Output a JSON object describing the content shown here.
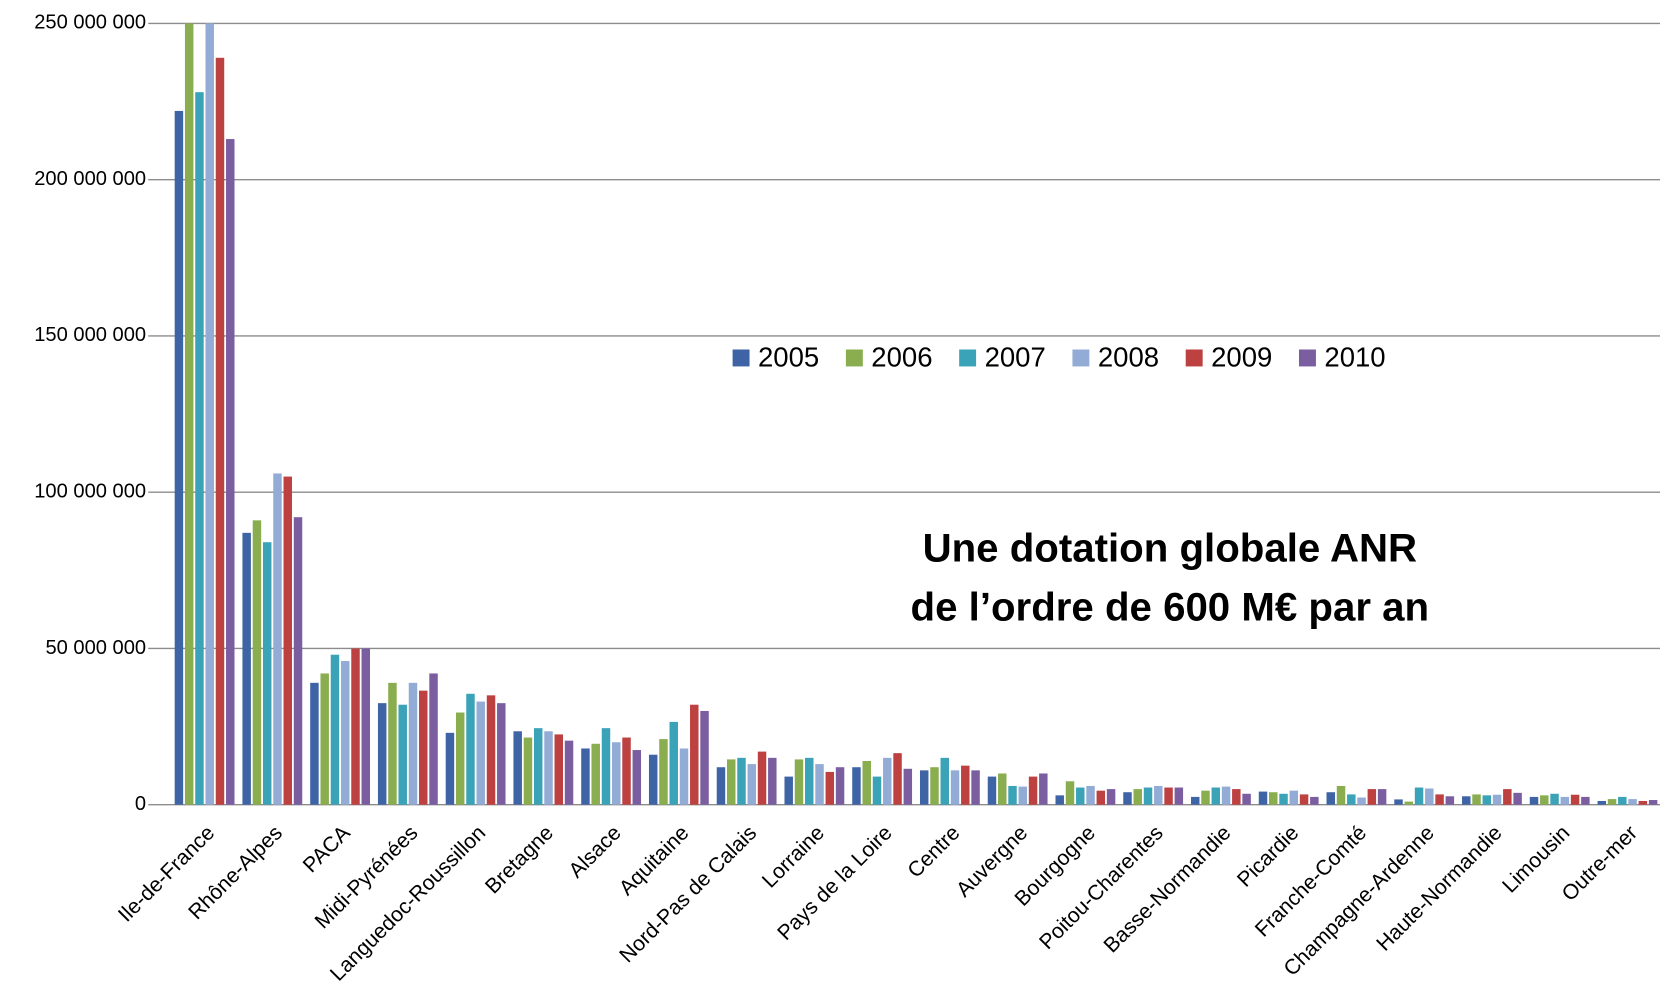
{
  "chart_data": {
    "type": "bar",
    "categories": [
      "Ile-de-France",
      "Rhône-Alpes",
      "PACA",
      "Midi-Pyrénées",
      "Languedoc-Roussillon",
      "Bretagne",
      "Alsace",
      "Aquitaine",
      "Nord-Pas de Calais",
      "Lorraine",
      "Pays de la Loire",
      "Centre",
      "Auvergne",
      "Bourgogne",
      "Poitou-Charentes",
      "Basse-Normandie",
      "Picardie",
      "Franche-Comté",
      "Champagne-Ardenne",
      "Haute-Normandie",
      "Limousin",
      "Outre-mer"
    ],
    "series": [
      {
        "name": "2005",
        "color": "#3f64a6",
        "values": [
          222000000,
          87000000,
          39000000,
          32500000,
          23000000,
          23500000,
          18000000,
          16000000,
          12000000,
          9000000,
          12000000,
          11000000,
          9000000,
          3000000,
          4000000,
          2500000,
          4200000,
          4000000,
          1700000,
          2700000,
          2500000,
          1200000
        ]
      },
      {
        "name": "2006",
        "color": "#8aad4f",
        "values": [
          255000000,
          91000000,
          42000000,
          39000000,
          29500000,
          21500000,
          19500000,
          21000000,
          14500000,
          14500000,
          14000000,
          12000000,
          10000000,
          7500000,
          5000000,
          4500000,
          4000000,
          6000000,
          1000000,
          3300000,
          3000000,
          1800000
        ]
      },
      {
        "name": "2007",
        "color": "#3ba3b8",
        "values": [
          228000000,
          84000000,
          48000000,
          32000000,
          35500000,
          24500000,
          24500000,
          26500000,
          15000000,
          15000000,
          9000000,
          15000000,
          6000000,
          5500000,
          5500000,
          5500000,
          3500000,
          3300000,
          5500000,
          3000000,
          3500000,
          2500000
        ]
      },
      {
        "name": "2008",
        "color": "#93acd6",
        "values": [
          260000000,
          106000000,
          46000000,
          39000000,
          33000000,
          23500000,
          20000000,
          18000000,
          13000000,
          13000000,
          15000000,
          11000000,
          5800000,
          6000000,
          6000000,
          5800000,
          4500000,
          2300000,
          5200000,
          3200000,
          2500000,
          1800000
        ]
      },
      {
        "name": "2009",
        "color": "#bd4140",
        "values": [
          239000000,
          105000000,
          50000000,
          36500000,
          35000000,
          22500000,
          21500000,
          32000000,
          17000000,
          10500000,
          16500000,
          12500000,
          9000000,
          4500000,
          5500000,
          5000000,
          3300000,
          5000000,
          3300000,
          5000000,
          3200000,
          1200000
        ]
      },
      {
        "name": "2010",
        "color": "#7a5ea0",
        "values": [
          213000000,
          92000000,
          50000000,
          42000000,
          32500000,
          20500000,
          17500000,
          30000000,
          15000000,
          12000000,
          11500000,
          11000000,
          10000000,
          5000000,
          5500000,
          3500000,
          2500000,
          5000000,
          2700000,
          3800000,
          2500000,
          1500000
        ]
      }
    ],
    "ylim": [
      0,
      250000000
    ],
    "yticks": [
      {
        "value": 0,
        "label": "0"
      },
      {
        "value": 50000000,
        "label": "50 000 000"
      },
      {
        "value": 100000000,
        "label": "100 000 000"
      },
      {
        "value": 150000000,
        "label": "150 000 000"
      },
      {
        "value": 200000000,
        "label": "200 000 000"
      },
      {
        "value": 250000000,
        "label": "250 000 000"
      }
    ],
    "grid": true,
    "legend": "center",
    "annotation": [
      "Une dotation globale ANR",
      "de l’ordre de 600 M€ par an"
    ]
  }
}
